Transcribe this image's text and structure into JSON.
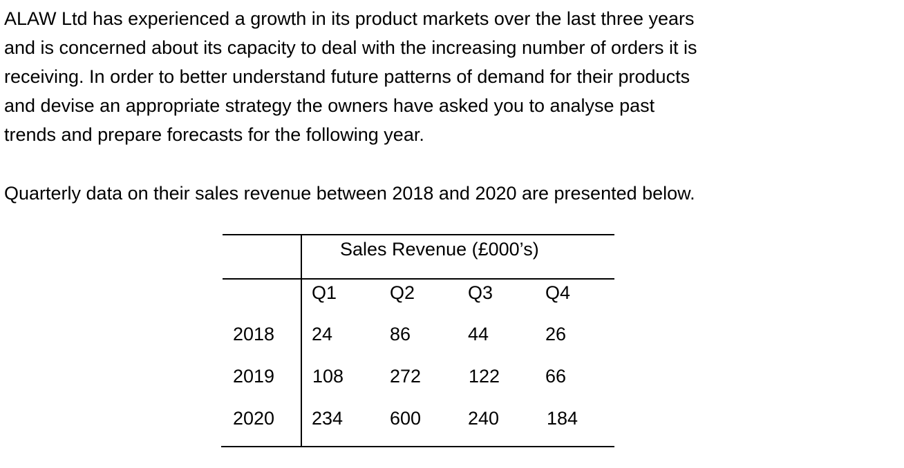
{
  "intro": {
    "lines": [
      "ALAW Ltd has experienced a growth in its product markets over the last three years",
      "and is concerned about its capacity to deal with the increasing number of orders it is",
      "receiving. In order to better understand future patterns of demand for their products",
      "and devise an appropriate strategy the owners have asked you to analyse past",
      "trends and prepare forecasts for the following year."
    ],
    "lead_in": "Quarterly data on their sales revenue between 2018 and 2020 are presented below."
  },
  "table": {
    "title": "Sales Revenue (£000’s)",
    "columns": [
      "Q1",
      "Q2",
      "Q3",
      "Q4"
    ],
    "rows": [
      {
        "year": "2018",
        "values": [
          "24",
          "86",
          "44",
          "26"
        ]
      },
      {
        "year": "2019",
        "values": [
          "108",
          "272",
          "122",
          "66"
        ]
      },
      {
        "year": "2020",
        "values": [
          "234",
          "600",
          "240",
          "184"
        ]
      }
    ]
  }
}
